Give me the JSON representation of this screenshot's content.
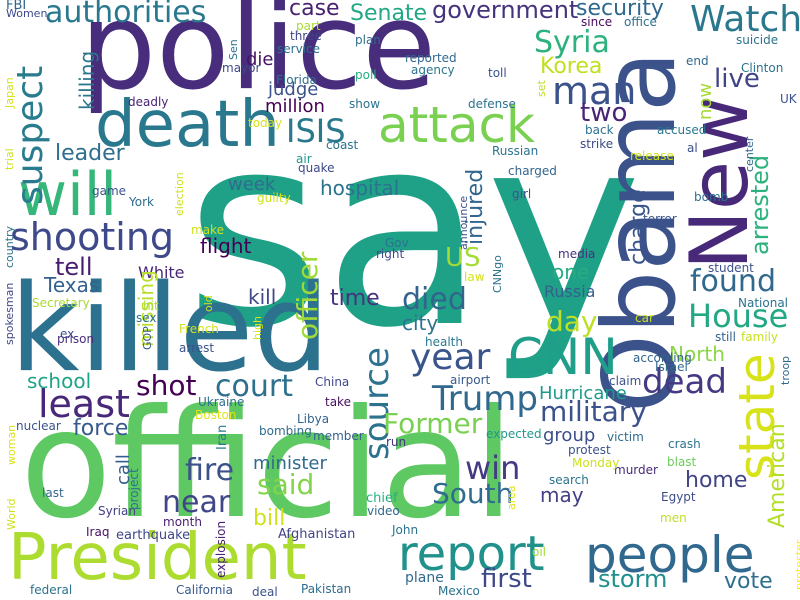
{
  "words": [
    {
      "text": "say",
      "color": "#1fa187",
      "rotated": false
    },
    {
      "text": "police",
      "color": "#472d7b",
      "rotated": false
    },
    {
      "text": "official",
      "color": "#5ec962",
      "rotated": false
    },
    {
      "text": "killed",
      "color": "#2c728e",
      "rotated": false
    },
    {
      "text": "Obama",
      "color": "#3b528b",
      "rotated": true
    },
    {
      "text": "New",
      "color": "#482878",
      "rotated": true
    },
    {
      "text": "death",
      "color": "#2a788e",
      "rotated": false
    },
    {
      "text": "President",
      "color": "#addc30",
      "rotated": false
    },
    {
      "text": "people",
      "color": "#31688e",
      "rotated": false
    },
    {
      "text": "report",
      "color": "#21918c",
      "rotated": false
    },
    {
      "text": "attack",
      "color": "#7ad151",
      "rotated": false
    },
    {
      "text": "CNN",
      "color": "#1f9e89",
      "rotated": false
    },
    {
      "text": "state",
      "color": "#d8e219",
      "rotated": true
    },
    {
      "text": "will",
      "color": "#35b779",
      "rotated": false
    },
    {
      "text": "shooting",
      "color": "#3e4989",
      "rotated": false
    },
    {
      "text": "Watch",
      "color": "#2a788e",
      "rotated": false
    },
    {
      "text": "suspect",
      "color": "#287c8e",
      "rotated": true
    },
    {
      "text": "arrested",
      "color": "#2db27d",
      "rotated": true
    },
    {
      "text": "man",
      "color": "#3b528b",
      "rotated": false
    },
    {
      "text": "found",
      "color": "#31688e",
      "rotated": false
    },
    {
      "text": "House",
      "color": "#22a884",
      "rotated": false
    },
    {
      "text": "least",
      "color": "#482878",
      "rotated": false
    },
    {
      "text": "dead",
      "color": "#443983",
      "rotated": false
    },
    {
      "text": "Trump",
      "color": "#31688e",
      "rotated": false
    },
    {
      "text": "year",
      "color": "#39558c",
      "rotated": false
    },
    {
      "text": "ISIS",
      "color": "#2a788e",
      "rotated": false
    },
    {
      "text": "source",
      "color": "#2c728e",
      "rotated": true
    },
    {
      "text": "military",
      "color": "#3b528b",
      "rotated": false
    },
    {
      "text": "court",
      "color": "#2d708e",
      "rotated": false
    },
    {
      "text": "officer",
      "color": "#a0da39",
      "rotated": true
    },
    {
      "text": "authorities",
      "color": "#2a788e",
      "rotated": false
    },
    {
      "text": "Former",
      "color": "#7ad151",
      "rotated": false
    },
    {
      "text": "died",
      "color": "#32648e",
      "rotated": false
    },
    {
      "text": "American",
      "color": "#b5de2b",
      "rotated": true
    },
    {
      "text": "shot",
      "color": "#440154",
      "rotated": false
    },
    {
      "text": "win",
      "color": "#443a83",
      "rotated": false
    },
    {
      "text": "near",
      "color": "#404688",
      "rotated": false
    },
    {
      "text": "fire",
      "color": "#3b528b",
      "rotated": false
    },
    {
      "text": "South",
      "color": "#2f6c8e",
      "rotated": false
    },
    {
      "text": "Syria",
      "color": "#2db27d",
      "rotated": false
    },
    {
      "text": "first",
      "color": "#3e4989",
      "rotated": false
    },
    {
      "text": "two",
      "color": "#482475",
      "rotated": false
    },
    {
      "text": "live",
      "color": "#414487",
      "rotated": false
    },
    {
      "text": "government",
      "color": "#46337e",
      "rotated": false
    },
    {
      "text": "security",
      "color": "#30698e",
      "rotated": false
    },
    {
      "text": "Senate",
      "color": "#22a884",
      "rotated": false
    },
    {
      "text": "case",
      "color": "#482071",
      "rotated": false
    },
    {
      "text": "tell",
      "color": "#481d6f",
      "rotated": false
    },
    {
      "text": "US",
      "color": "#a5db36",
      "rotated": false
    },
    {
      "text": "leader",
      "color": "#2e6e8e",
      "rotated": false
    },
    {
      "text": "said",
      "color": "#84d44b",
      "rotated": false
    },
    {
      "text": "city",
      "color": "#2c738e",
      "rotated": false
    },
    {
      "text": "day",
      "color": "#bddf26",
      "rotated": false
    },
    {
      "text": "storm",
      "color": "#21908d",
      "rotated": false
    },
    {
      "text": "Korea",
      "color": "#c2df23",
      "rotated": false
    },
    {
      "text": "Texas",
      "color": "#34618d",
      "rotated": false
    },
    {
      "text": "school",
      "color": "#20a486",
      "rotated": false
    },
    {
      "text": "force",
      "color": "#375a8c",
      "rotated": false
    },
    {
      "text": "home",
      "color": "#414487",
      "rotated": false
    },
    {
      "text": "time",
      "color": "#46327e",
      "rotated": false
    },
    {
      "text": "hospital",
      "color": "#2c728e",
      "rotated": false
    },
    {
      "text": "charge",
      "color": "#3a548c",
      "rotated": true
    },
    {
      "text": "injured",
      "color": "#31668e",
      "rotated": true
    },
    {
      "text": "killing",
      "color": "#2b758e",
      "rotated": true
    },
    {
      "text": "North",
      "color": "#8bd646",
      "rotated": false
    },
    {
      "text": "Hurricane",
      "color": "#1e9b8a",
      "rotated": false
    },
    {
      "text": "group",
      "color": "#3c4f8a",
      "rotated": false
    },
    {
      "text": "bill",
      "color": "#d0e11c",
      "rotated": false
    },
    {
      "text": "vote",
      "color": "#2e6f8e",
      "rotated": false
    },
    {
      "text": "one",
      "color": "#25ac82",
      "rotated": false
    },
    {
      "text": "may",
      "color": "#423f85",
      "rotated": false
    },
    {
      "text": "kill",
      "color": "#3f4889",
      "rotated": false
    },
    {
      "text": "flight",
      "color": "#440154",
      "rotated": false
    },
    {
      "text": "week",
      "color": "#2f6b8e",
      "rotated": false
    },
    {
      "text": "million",
      "color": "#440154",
      "rotated": false
    },
    {
      "text": "judge",
      "color": "#3b528b",
      "rotated": false
    },
    {
      "text": "minister",
      "color": "#2f6b8e",
      "rotated": false
    },
    {
      "text": "Russia",
      "color": "#355f8d",
      "rotated": false
    },
    {
      "text": "die",
      "color": "#471164",
      "rotated": false
    },
    {
      "text": "White",
      "color": "#482677",
      "rotated": false
    },
    {
      "text": "missing",
      "color": "#b8de29",
      "rotated": true
    },
    {
      "text": "call",
      "color": "#355e8d",
      "rotated": true
    },
    {
      "text": "now",
      "color": "#a5db36",
      "rotated": true
    },
    {
      "text": "Pakistan",
      "color": "#2f6c8e",
      "rotated": false
    },
    {
      "text": "Afghanistan",
      "color": "#414487",
      "rotated": false
    },
    {
      "text": "California",
      "color": "#38598c",
      "rotated": false
    },
    {
      "text": "Mexico",
      "color": "#2c728e",
      "rotated": false
    },
    {
      "text": "plane",
      "color": "#30698e",
      "rotated": false
    },
    {
      "text": "earthquake",
      "color": "#3f4788",
      "rotated": false
    },
    {
      "text": "Iraq",
      "color": "#471063",
      "rotated": false
    },
    {
      "text": "explosion",
      "color": "#482173",
      "rotated": true
    },
    {
      "text": "deal",
      "color": "#3b528b",
      "rotated": false
    },
    {
      "text": "federal",
      "color": "#2c728e",
      "rotated": false
    },
    {
      "text": "protester",
      "color": "#fde725",
      "rotated": true
    },
    {
      "text": "Syrian",
      "color": "#433e85",
      "rotated": false
    },
    {
      "text": "chief",
      "color": "#27ad81",
      "rotated": false
    },
    {
      "text": "video",
      "color": "#31688e",
      "rotated": false
    },
    {
      "text": "John",
      "color": "#2b748e",
      "rotated": false
    },
    {
      "text": "oil",
      "color": "#a2da37",
      "rotated": false
    },
    {
      "text": "area",
      "color": "#e2e418",
      "rotated": true
    },
    {
      "text": "men",
      "color": "#bddf26",
      "rotated": false
    },
    {
      "text": "Egypt",
      "color": "#3d4e8a",
      "rotated": false
    },
    {
      "text": "search",
      "color": "#2c728e",
      "rotated": false
    },
    {
      "text": "murder",
      "color": "#472c7a",
      "rotated": false
    },
    {
      "text": "Monday",
      "color": "#cde11d",
      "rotated": false
    },
    {
      "text": "protest",
      "color": "#3b528b",
      "rotated": false
    },
    {
      "text": "victim",
      "color": "#2e6e8e",
      "rotated": false
    },
    {
      "text": "blast",
      "color": "#6ccd5a",
      "rotated": false
    },
    {
      "text": "crash",
      "color": "#2b758e",
      "rotated": false
    },
    {
      "text": "expected",
      "color": "#1f988b",
      "rotated": false
    },
    {
      "text": "run",
      "color": "#45337d",
      "rotated": false
    },
    {
      "text": "member",
      "color": "#355f8d",
      "rotated": false
    },
    {
      "text": "bombing",
      "color": "#2f6c8e",
      "rotated": false
    },
    {
      "text": "Libya",
      "color": "#32658e",
      "rotated": false
    },
    {
      "text": "take",
      "color": "#470e61",
      "rotated": false
    },
    {
      "text": "China",
      "color": "#3f4788",
      "rotated": false
    },
    {
      "text": "Ukraine",
      "color": "#2e6f8e",
      "rotated": false
    },
    {
      "text": "Boston",
      "color": "#e2e418",
      "rotated": false
    },
    {
      "text": "Iran",
      "color": "#287c8e",
      "rotated": true
    },
    {
      "text": "month",
      "color": "#481d6f",
      "rotated": false
    },
    {
      "text": "project",
      "color": "#2c738e",
      "rotated": true
    },
    {
      "text": "last",
      "color": "#31678e",
      "rotated": false
    },
    {
      "text": "nuclear",
      "color": "#3b528b",
      "rotated": false
    },
    {
      "text": "woman",
      "color": "#d8e219",
      "rotated": true
    },
    {
      "text": "World",
      "color": "#d0e11c",
      "rotated": true
    },
    {
      "text": "prison",
      "color": "#472f7d",
      "rotated": false
    },
    {
      "text": "spokesman",
      "color": "#3f4889",
      "rotated": true
    },
    {
      "text": "Secretary",
      "color": "#a8db34",
      "rotated": false
    },
    {
      "text": "country",
      "color": "#2c728e",
      "rotated": true
    },
    {
      "text": "trial",
      "color": "#d2e21b",
      "rotated": true
    },
    {
      "text": "ex",
      "color": "#3e4989",
      "rotated": false
    },
    {
      "text": "Japan",
      "color": "#d8e219",
      "rotated": true
    },
    {
      "text": "FBI",
      "color": "#32658e",
      "rotated": false
    },
    {
      "text": "Women",
      "color": "#3e4989",
      "rotated": false
    },
    {
      "text": "deadly",
      "color": "#482475",
      "rotated": false
    },
    {
      "text": "today",
      "color": "#d8e219",
      "rotated": false
    },
    {
      "text": "mayor",
      "color": "#3e4989",
      "rotated": false
    },
    {
      "text": "Sen",
      "color": "#2c728e",
      "rotated": true
    },
    {
      "text": "part",
      "color": "#aadc32",
      "rotated": false
    },
    {
      "text": "three",
      "color": "#404688",
      "rotated": false
    },
    {
      "text": "service",
      "color": "#2c728e",
      "rotated": false
    },
    {
      "text": "Florida",
      "color": "#2e6e8e",
      "rotated": false
    },
    {
      "text": "plan",
      "color": "#2f6b8e",
      "rotated": false
    },
    {
      "text": "poll",
      "color": "#25ac82",
      "rotated": false
    },
    {
      "text": "show",
      "color": "#2c728e",
      "rotated": false
    },
    {
      "text": "reported",
      "color": "#31688e",
      "rotated": false
    },
    {
      "text": "agency",
      "color": "#2b748e",
      "rotated": false
    },
    {
      "text": "toll",
      "color": "#3a548c",
      "rotated": false
    },
    {
      "text": "defense",
      "color": "#2c728e",
      "rotated": false
    },
    {
      "text": "set",
      "color": "#c0df25",
      "rotated": true
    },
    {
      "text": "since",
      "color": "#46085c",
      "rotated": false
    },
    {
      "text": "office",
      "color": "#2c728e",
      "rotated": false
    },
    {
      "text": "end",
      "color": "#31688e",
      "rotated": false
    },
    {
      "text": "Clinton",
      "color": "#2c728e",
      "rotated": false
    },
    {
      "text": "suicide",
      "color": "#2c728e",
      "rotated": false
    },
    {
      "text": "UK",
      "color": "#3b528b",
      "rotated": false
    },
    {
      "text": "back",
      "color": "#2c728e",
      "rotated": false
    },
    {
      "text": "accused",
      "color": "#2a778e",
      "rotated": false
    },
    {
      "text": "al",
      "color": "#3c4f8a",
      "rotated": false
    },
    {
      "text": "strike",
      "color": "#3e4989",
      "rotated": false
    },
    {
      "text": "release",
      "color": "#cde11d",
      "rotated": false
    },
    {
      "text": "center",
      "color": "#30698e",
      "rotated": true
    },
    {
      "text": "bomb",
      "color": "#2c728e",
      "rotated": false
    },
    {
      "text": "terror",
      "color": "#3a548c",
      "rotated": false
    },
    {
      "text": "student",
      "color": "#3b528b",
      "rotated": false
    },
    {
      "text": "National",
      "color": "#2c728e",
      "rotated": false
    },
    {
      "text": "still",
      "color": "#33638d",
      "rotated": false
    },
    {
      "text": "family",
      "color": "#c8e020",
      "rotated": false
    },
    {
      "text": "troop",
      "color": "#30698e",
      "rotated": true
    },
    {
      "text": "claim",
      "color": "#3b528b",
      "rotated": false
    },
    {
      "text": "according",
      "color": "#33638d",
      "rotated": false
    },
    {
      "text": "car",
      "color": "#d2e21b",
      "rotated": false
    },
    {
      "text": "Israel",
      "color": "#30698e",
      "rotated": false
    },
    {
      "text": "airport",
      "color": "#38598c",
      "rotated": false
    },
    {
      "text": "health",
      "color": "#2a788e",
      "rotated": false
    },
    {
      "text": "CNNgo",
      "color": "#2c728e",
      "rotated": true
    },
    {
      "text": "law",
      "color": "#d8e219",
      "rotated": false
    },
    {
      "text": "announce",
      "color": "#3b528b",
      "rotated": true
    },
    {
      "text": "right",
      "color": "#3e4989",
      "rotated": false
    },
    {
      "text": "Gov",
      "color": "#2c728e",
      "rotated": false
    },
    {
      "text": "media",
      "color": "#46327e",
      "rotated": false
    },
    {
      "text": "girl",
      "color": "#3b528b",
      "rotated": false
    },
    {
      "text": "charged",
      "color": "#32658e",
      "rotated": false
    },
    {
      "text": "Russian",
      "color": "#2c728e",
      "rotated": false
    },
    {
      "text": "coast",
      "color": "#2c728e",
      "rotated": false
    },
    {
      "text": "air",
      "color": "#1f988b",
      "rotated": false
    },
    {
      "text": "quake",
      "color": "#3e4989",
      "rotated": false
    },
    {
      "text": "election",
      "color": "#d0e11c",
      "rotated": true
    },
    {
      "text": "make",
      "color": "#d0e11c",
      "rotated": false
    },
    {
      "text": "guilty",
      "color": "#cde11d",
      "rotated": false
    },
    {
      "text": "York",
      "color": "#2f6c8e",
      "rotated": false
    },
    {
      "text": "game",
      "color": "#3b528b",
      "rotated": false
    },
    {
      "text": "hit",
      "color": "#a8db34",
      "rotated": false
    },
    {
      "text": "sex",
      "color": "#2c728e",
      "rotated": false
    },
    {
      "text": "GOP",
      "color": "#38598c",
      "rotated": true
    },
    {
      "text": "French",
      "color": "#d0e11c",
      "rotated": false
    },
    {
      "text": "old",
      "color": "#d0e11c",
      "rotated": true
    },
    {
      "text": "high",
      "color": "#d8e219",
      "rotated": true
    },
    {
      "text": "arrest",
      "color": "#3b528b",
      "rotated": false
    }
  ]
}
